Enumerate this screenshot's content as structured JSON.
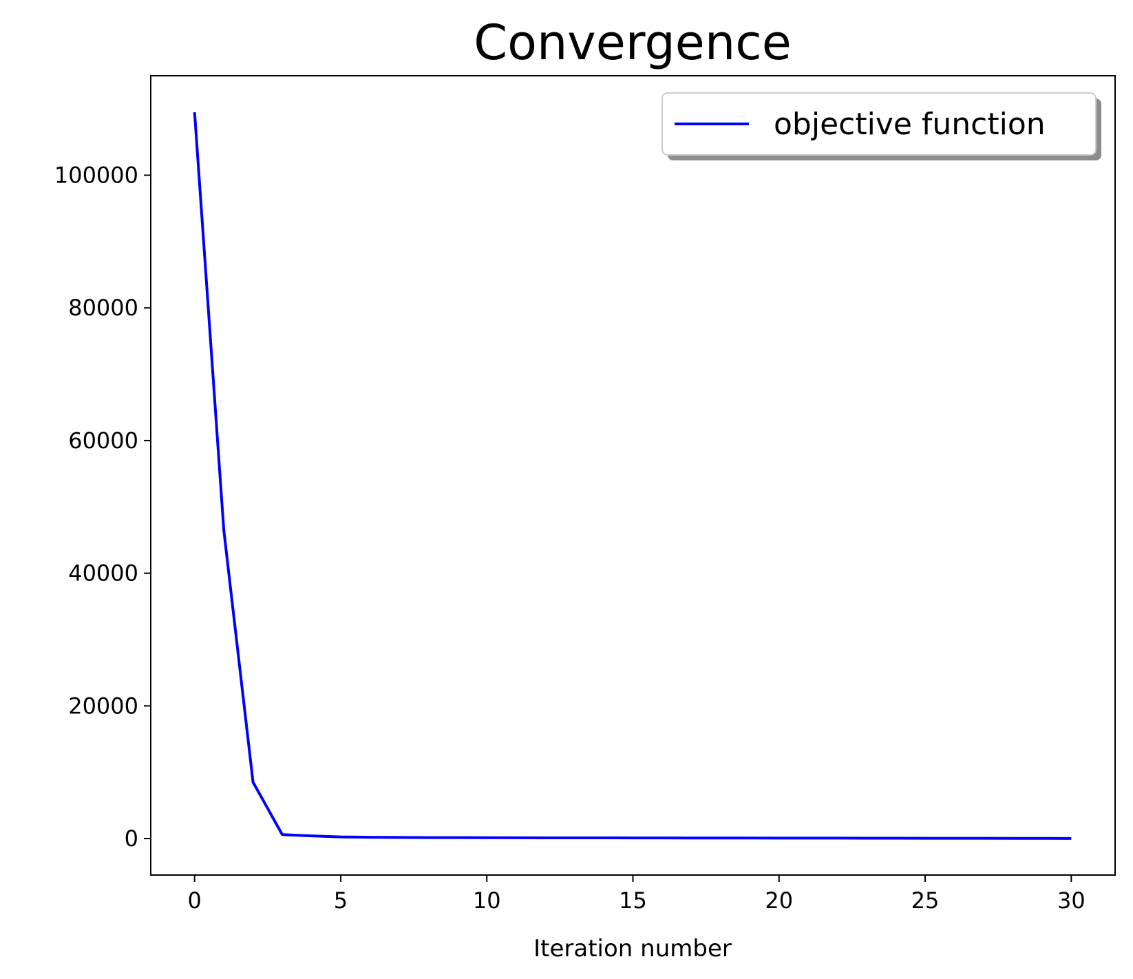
{
  "chart_data": {
    "type": "line",
    "title": "Convergence",
    "xlabel": "Iteration number",
    "ylabel": "",
    "xlim": [
      -1.5,
      31.5
    ],
    "ylim": [
      -5500,
      115000
    ],
    "x_ticks": [
      0,
      5,
      10,
      15,
      20,
      25,
      30
    ],
    "y_ticks": [
      0,
      20000,
      40000,
      60000,
      80000,
      100000
    ],
    "grid": false,
    "legend_position": "top-right",
    "series": [
      {
        "name": "objective function",
        "color": "#0000ff",
        "x": [
          0,
          1,
          2,
          3,
          4,
          5,
          6,
          7,
          8,
          9,
          10,
          11,
          12,
          13,
          14,
          15,
          16,
          17,
          18,
          19,
          20,
          21,
          22,
          23,
          24,
          25,
          26,
          27,
          28,
          29,
          30
        ],
        "y": [
          109500,
          46500,
          8500,
          600,
          400,
          250,
          200,
          170,
          150,
          140,
          130,
          120,
          110,
          105,
          100,
          95,
          90,
          85,
          80,
          75,
          70,
          65,
          60,
          55,
          50,
          45,
          40,
          35,
          30,
          25,
          20
        ]
      }
    ]
  }
}
